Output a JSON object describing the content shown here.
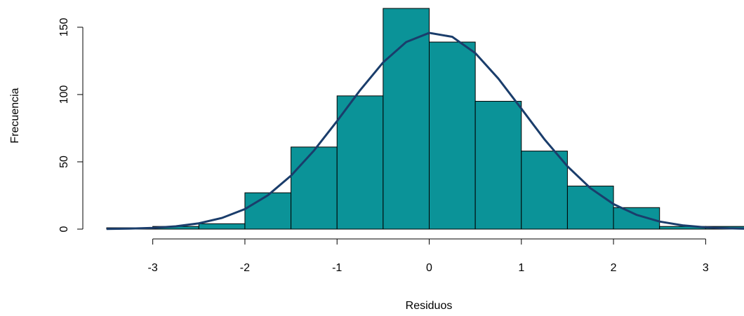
{
  "chart_data": {
    "type": "histogram",
    "xlabel": "Residuos",
    "ylabel": "Frecuencia",
    "bins": [
      -3.5,
      -3.0,
      -2.5,
      -2.0,
      -1.5,
      -1.0,
      -0.5,
      0,
      0.5,
      1.0,
      1.5,
      2.0,
      2.5,
      3.0,
      3.5
    ],
    "counts": [
      1,
      2,
      4,
      27,
      61,
      99,
      164,
      139,
      95,
      58,
      32,
      16,
      2,
      2
    ],
    "color": "#0b9398",
    "curve": {
      "color": "#1a3d6b",
      "x": [
        -3.5,
        -3.25,
        -3.0,
        -2.75,
        -2.5,
        -2.25,
        -2.0,
        -1.75,
        -1.5,
        -1.25,
        -1.0,
        -0.75,
        -0.5,
        -0.25,
        0,
        0.25,
        0.5,
        0.75,
        1.0,
        1.25,
        1.5,
        1.75,
        2.0,
        2.25,
        2.5,
        2.75,
        3.0,
        3.25,
        3.5
      ],
      "values": [
        0.16,
        0.4,
        0.94,
        2.07,
        4.29,
        8.28,
        14.9,
        25.2,
        39.7,
        58.4,
        80.3,
        103.2,
        123.9,
        139.0,
        145.8,
        142.9,
        130.8,
        111.9,
        89.5,
        66.8,
        46.7,
        30.4,
        18.6,
        10.6,
        5.62,
        2.8,
        1.3,
        0.56,
        0.23
      ]
    },
    "xlim": [
      -3.5,
      3.5
    ],
    "ylim": [
      0,
      164
    ],
    "xticks": [
      -3,
      -2,
      -1,
      0,
      1,
      2,
      3
    ],
    "yticks": [
      0,
      50,
      100,
      150
    ]
  }
}
